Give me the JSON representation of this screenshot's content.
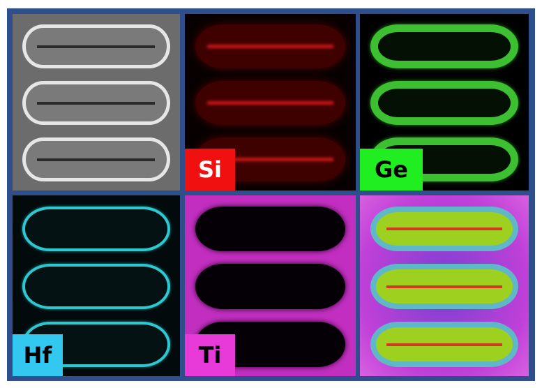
{
  "figure": {
    "panels": [
      {
        "id": "tem",
        "label": ""
      },
      {
        "id": "si",
        "label": "Si",
        "color": "#f01010"
      },
      {
        "id": "ge",
        "label": "Ge",
        "color": "#20ee20"
      },
      {
        "id": "hf",
        "label": "Hf",
        "color": "#33c8f0"
      },
      {
        "id": "ti",
        "label": "Ti",
        "color": "#e83ad8"
      },
      {
        "id": "overlay",
        "label": ""
      }
    ],
    "frame_color": "#2e4f8c"
  }
}
